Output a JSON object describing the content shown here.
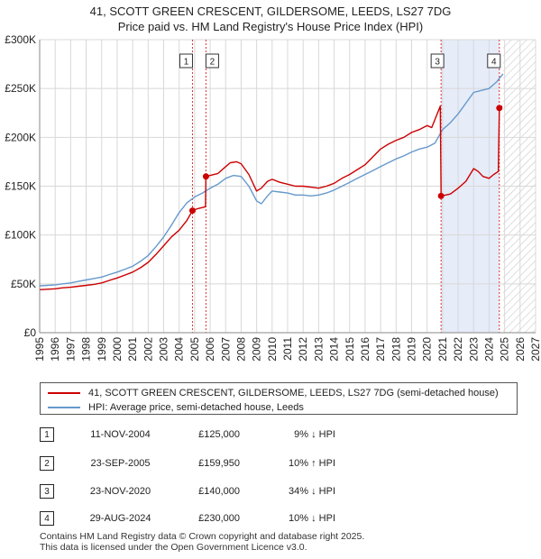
{
  "title_line1": "41, SCOTT GREEN CRESCENT, GILDERSOME, LEEDS, LS27 7DG",
  "title_line2": "Price paid vs. HM Land Registry's House Price Index (HPI)",
  "colors": {
    "price_line": "#cc0000",
    "hpi_line": "#6699cc",
    "marker_vline": "#dd3333",
    "shade": "#e6ecf8",
    "grid": "#d8d8d8"
  },
  "legend": {
    "price_label": "41, SCOTT GREEN CRESCENT, GILDERSOME, LEEDS, LS27 7DG (semi-detached house)",
    "hpi_label": "HPI: Average price, semi-detached house, Leeds"
  },
  "transactions": [
    {
      "num": "1",
      "date": "11-NOV-2004",
      "price": "£125,000",
      "hpi": "9% ↓ HPI"
    },
    {
      "num": "2",
      "date": "23-SEP-2005",
      "price": "£159,950",
      "hpi": "10% ↑ HPI"
    },
    {
      "num": "3",
      "date": "23-NOV-2020",
      "price": "£140,000",
      "hpi": "34% ↓ HPI"
    },
    {
      "num": "4",
      "date": "29-AUG-2024",
      "price": "£230,000",
      "hpi": "10% ↓ HPI"
    }
  ],
  "footer_line1": "Contains HM Land Registry data © Crown copyright and database right 2025.",
  "footer_line2": "This data is licensed under the Open Government Licence v3.0.",
  "chart_data": {
    "type": "line",
    "title": "Price paid vs. HM Land Registry's House Price Index (HPI)",
    "xlabel": "",
    "ylabel": "",
    "xlim": [
      1995,
      2027
    ],
    "ylim": [
      0,
      300000
    ],
    "y_ticks": [
      0,
      50000,
      100000,
      150000,
      200000,
      250000,
      300000
    ],
    "y_tick_labels": [
      "£0",
      "£50K",
      "£100K",
      "£150K",
      "£200K",
      "£250K",
      "£300K"
    ],
    "x_ticks": [
      1995,
      1996,
      1997,
      1998,
      1999,
      2000,
      2001,
      2002,
      2003,
      2004,
      2005,
      2006,
      2007,
      2008,
      2009,
      2010,
      2011,
      2012,
      2013,
      2014,
      2015,
      2016,
      2017,
      2018,
      2019,
      2020,
      2021,
      2022,
      2023,
      2024,
      2025,
      2026,
      2027
    ],
    "grid": true,
    "shaded_ranges": [
      [
        2020.9,
        2024.66
      ]
    ],
    "hatched_from": 2024.9,
    "event_markers": [
      {
        "label": "1",
        "x": 2004.86,
        "price": 125000
      },
      {
        "label": "2",
        "x": 2005.73,
        "price": 159950
      },
      {
        "label": "3",
        "x": 2020.9,
        "price": 140000
      },
      {
        "label": "4",
        "x": 2024.66,
        "price": 230000
      }
    ],
    "series": [
      {
        "name": "41, SCOTT GREEN CRESCENT, GILDERSOME, LEEDS, LS27 7DG (semi-detached house)",
        "color": "#cc0000",
        "x": [
          1995,
          1995.5,
          1996,
          1996.5,
          1997,
          1997.5,
          1998,
          1998.5,
          1999,
          1999.5,
          2000,
          2000.5,
          2001,
          2001.5,
          2002,
          2002.5,
          2003,
          2003.5,
          2004,
          2004.5,
          2004.86,
          2005.2,
          2005.7,
          2005.73,
          2006,
          2006.5,
          2007,
          2007.3,
          2007.7,
          2008,
          2008.5,
          2009,
          2009.3,
          2009.7,
          2010,
          2010.5,
          2011,
          2011.5,
          2012,
          2012.5,
          2013,
          2013.5,
          2014,
          2014.5,
          2015,
          2015.5,
          2016,
          2016.5,
          2017,
          2017.5,
          2018,
          2018.5,
          2019,
          2019.5,
          2020,
          2020.3,
          2020.6,
          2020.85,
          2020.9,
          2021.2,
          2021.5,
          2022,
          2022.5,
          2023,
          2023.3,
          2023.6,
          2024,
          2024.3,
          2024.6,
          2024.66,
          2024.85
        ],
        "values": [
          44000,
          44500,
          45000,
          46000,
          46500,
          47500,
          48500,
          49500,
          51000,
          53500,
          56000,
          59000,
          62000,
          66500,
          72000,
          80000,
          89000,
          98000,
          105000,
          115000,
          125000,
          127000,
          129000,
          159950,
          161000,
          163000,
          170000,
          174000,
          175000,
          173000,
          162000,
          145000,
          148000,
          155000,
          157000,
          154000,
          152000,
          150000,
          150000,
          149000,
          148000,
          150000,
          153000,
          158000,
          162000,
          167000,
          172000,
          180000,
          188000,
          193000,
          197000,
          200000,
          205000,
          208000,
          212000,
          210000,
          222000,
          232000,
          140000,
          141000,
          142000,
          148000,
          155000,
          168000,
          165000,
          160000,
          158000,
          162000,
          165000,
          230000,
          232000
        ]
      },
      {
        "name": "HPI: Average price, semi-detached house, Leeds",
        "color": "#6699cc",
        "x": [
          1995,
          1995.5,
          1996,
          1996.5,
          1997,
          1997.5,
          1998,
          1998.5,
          1999,
          1999.5,
          2000,
          2000.5,
          2001,
          2001.5,
          2002,
          2002.5,
          2003,
          2003.5,
          2004,
          2004.5,
          2005,
          2005.5,
          2006,
          2006.5,
          2007,
          2007.5,
          2008,
          2008.5,
          2009,
          2009.3,
          2009.7,
          2010,
          2010.5,
          2011,
          2011.5,
          2012,
          2012.5,
          2013,
          2013.5,
          2014,
          2014.5,
          2015,
          2015.5,
          2016,
          2016.5,
          2017,
          2017.5,
          2018,
          2018.5,
          2019,
          2019.5,
          2020,
          2020.5,
          2021,
          2021.5,
          2022,
          2022.5,
          2023,
          2023.5,
          2024,
          2024.5,
          2024.9
        ],
        "values": [
          48000,
          48500,
          49000,
          50000,
          51000,
          52500,
          54000,
          55500,
          57000,
          59500,
          62000,
          65000,
          68000,
          73000,
          79000,
          88000,
          98000,
          110000,
          123000,
          133000,
          139000,
          143000,
          148000,
          152000,
          158000,
          161000,
          160000,
          150000,
          135000,
          132000,
          140000,
          145000,
          144000,
          143000,
          141000,
          141000,
          140000,
          141000,
          143000,
          146000,
          150000,
          154000,
          158000,
          162000,
          166000,
          170000,
          174000,
          178000,
          181000,
          185000,
          188000,
          190000,
          194000,
          208000,
          215000,
          224000,
          235000,
          246000,
          248000,
          250000,
          257000,
          265000
        ]
      }
    ]
  }
}
